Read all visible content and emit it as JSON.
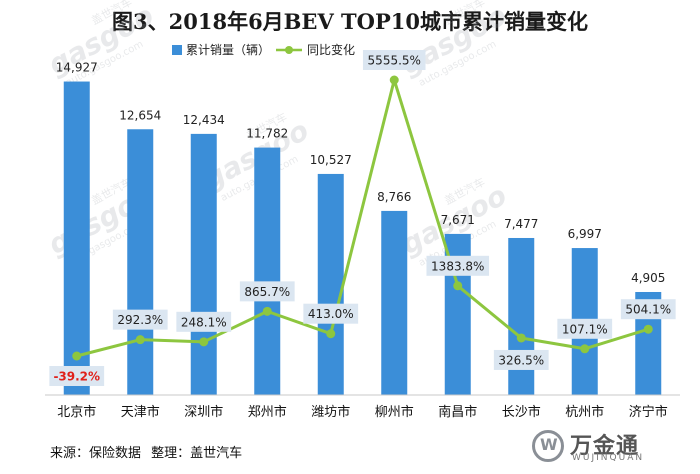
{
  "title": "图3、2018年6月BEV TOP10城市累计销量变化",
  "footer": {
    "source": "来源：保险数据",
    "compiled": "整理：盖世汽车"
  },
  "watermark": {
    "brand": "gasgoo",
    "cn": "盖世汽车",
    "url": "auto.gasgoo.com"
  },
  "brand": {
    "name_cn": "万金通",
    "name_en": "WUJINQUAN"
  },
  "colors": {
    "bar": "#3b8ed8",
    "line": "#8dc63f",
    "label_box": "#dbe6f1",
    "negative": "#e0211b"
  },
  "chart_data": {
    "type": "bar+line",
    "categories": [
      "北京市",
      "天津市",
      "深圳市",
      "郑州市",
      "潍坊市",
      "柳州市",
      "南昌市",
      "长沙市",
      "杭州市",
      "济宁市"
    ],
    "series": [
      {
        "name": "累计销量（辆）",
        "type": "bar",
        "values": [
          14927,
          12654,
          12434,
          11782,
          10527,
          8766,
          7671,
          7477,
          6997,
          4905
        ],
        "labels": [
          "14,927",
          "12,654",
          "12,434",
          "11,782",
          "10,527",
          "8,766",
          "7,671",
          "7,477",
          "6,997",
          "4,905"
        ]
      },
      {
        "name": "同比变化",
        "type": "line",
        "values": [
          -39.2,
          292.3,
          248.1,
          865.7,
          413.0,
          5555.5,
          1383.8,
          326.5,
          107.1,
          504.1
        ],
        "labels": [
          "-39.2%",
          "292.3%",
          "248.1%",
          "865.7%",
          "413.0%",
          "5555.5%",
          "1383.8%",
          "326.5%",
          "107.1%",
          "504.1%"
        ]
      }
    ],
    "legend_position": "top",
    "grid": false
  }
}
